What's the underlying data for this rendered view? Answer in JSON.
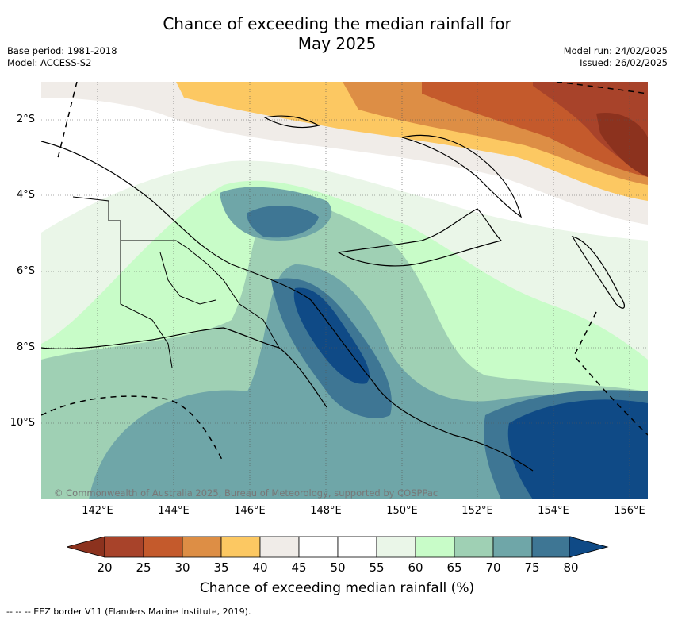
{
  "title_line1": "Chance of exceeding the median rainfall for",
  "title_line2": "May 2025",
  "base_period": "Base period: 1981-2018",
  "model": "Model: ACCESS-S2",
  "model_run": "Model run: 24/02/2025",
  "issued": "Issued: 26/02/2025",
  "lat_labels": [
    "2°S",
    "4°S",
    "6°S",
    "8°S",
    "10°S"
  ],
  "lon_labels": [
    "142°E",
    "144°E",
    "146°E",
    "148°E",
    "150°E",
    "152°E",
    "154°E",
    "156°E"
  ],
  "copyright": "© Commonwealth of Australia 2025, Bureau of Meteorology, supported by COSPPac",
  "colorbar": {
    "ticks": [
      "20",
      "25",
      "30",
      "35",
      "40",
      "45",
      "50",
      "55",
      "60",
      "65",
      "70",
      "75",
      "80"
    ],
    "colors": [
      "#a8432a",
      "#c45a2c",
      "#dd8e45",
      "#fcc862",
      "#f0ece8",
      "#ffffff",
      "#ffffff",
      "#eaf6e8",
      "#c8fcc8",
      "#9fd0b4",
      "#6fa6a8",
      "#3e7694"
    ],
    "below_color": "#8c321e",
    "above_color": "#0f4a86",
    "title": "Chance of exceeding median rainfall (%)"
  },
  "eez_note": "--  --  -- EEZ border V11 (Flanders Marine Institute, 2019)."
}
